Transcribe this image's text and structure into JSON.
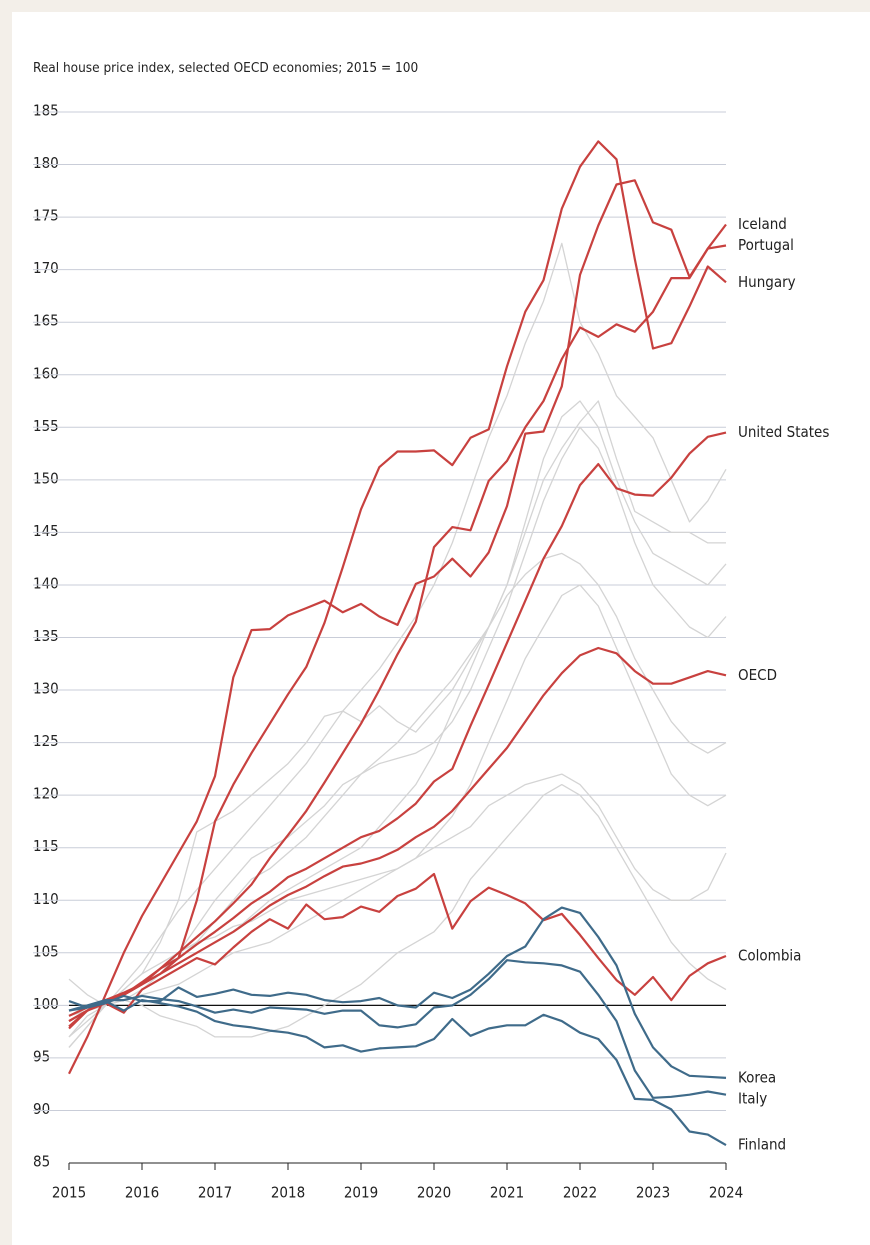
{
  "chart_data": {
    "type": "line",
    "title": "Real house price index, selected OECD economies; 2015 = 100",
    "x": [
      2015,
      2015.25,
      2015.5,
      2015.75,
      2016,
      2016.25,
      2016.5,
      2016.75,
      2017,
      2017.25,
      2017.5,
      2017.75,
      2018,
      2018.25,
      2018.5,
      2018.75,
      2019,
      2019.25,
      2019.5,
      2019.75,
      2020,
      2020.25,
      2020.5,
      2020.75,
      2021,
      2021.25,
      2021.5,
      2021.75,
      2022,
      2022.25,
      2022.5,
      2022.75,
      2023,
      2023.25,
      2023.5,
      2023.75,
      2024
    ],
    "xlim": [
      2015,
      2024
    ],
    "xticks": [
      2015,
      2016,
      2017,
      2018,
      2019,
      2020,
      2021,
      2022,
      2023,
      2024
    ],
    "ylim": [
      85,
      185
    ],
    "yticks": [
      85,
      90,
      95,
      100,
      105,
      110,
      115,
      120,
      125,
      130,
      135,
      140,
      145,
      150,
      155,
      160,
      165,
      170,
      175,
      180,
      185
    ],
    "grid": true,
    "reference_line": 100,
    "series": [
      {
        "color": "#d4d4d4",
        "values": [
          96,
          98,
          100,
          102,
          104,
          106.5,
          109,
          111,
          113,
          115,
          117,
          119,
          121,
          123,
          125.5,
          128,
          130,
          132,
          134.5,
          137,
          140,
          144,
          149,
          154,
          158,
          163,
          167,
          172.5,
          165,
          162,
          158,
          156,
          154,
          150,
          146,
          148,
          151
        ]
      },
      {
        "color": "#d4d4d4",
        "values": [
          97,
          99,
          100,
          101.5,
          103,
          106,
          110,
          116.5,
          117.5,
          118.5,
          120,
          121.5,
          123,
          125,
          127.5,
          128,
          127,
          128.5,
          127,
          126,
          128,
          130,
          133,
          136,
          140,
          146,
          152,
          156,
          157.5,
          155,
          150,
          146,
          143,
          142,
          141,
          140,
          142
        ]
      },
      {
        "color": "#d4d4d4",
        "values": [
          99,
          100,
          100,
          101,
          102,
          103,
          104,
          105,
          106,
          107,
          108.5,
          110,
          111,
          112,
          113,
          114,
          115,
          117,
          119,
          121,
          124,
          128,
          132,
          136,
          139,
          141,
          142.5,
          143,
          142,
          140,
          137,
          133,
          130,
          127,
          125,
          124,
          125
        ]
      },
      {
        "color": "#d4d4d4",
        "values": [
          98,
          99.5,
          100,
          100.5,
          101,
          101.5,
          102,
          103,
          104,
          105,
          105.5,
          106,
          107,
          108,
          109,
          110,
          111,
          112,
          113,
          114,
          116,
          118,
          121,
          125,
          129,
          133,
          136,
          139,
          140,
          138,
          134,
          130,
          126,
          122,
          120,
          119,
          120
        ]
      },
      {
        "color": "#d4d4d4",
        "values": [
          99,
          99.5,
          100,
          100.5,
          100,
          99,
          98.5,
          98,
          97,
          97,
          97,
          97.5,
          98,
          99,
          100,
          101,
          102,
          103.5,
          105,
          106,
          107,
          109,
          112,
          114,
          116,
          118,
          120,
          121,
          120,
          118,
          115,
          112,
          109,
          106,
          104,
          102.5,
          101.5
        ]
      },
      {
        "color": "#d4d4d4",
        "values": [
          102.5,
          101,
          100,
          100.5,
          101.5,
          103,
          105,
          107.5,
          110,
          112,
          114,
          115,
          116,
          117.5,
          119,
          121,
          122,
          123.5,
          125,
          127,
          129,
          131,
          133.5,
          136,
          140,
          145,
          150,
          153,
          155.5,
          157.5,
          152,
          147,
          146,
          145,
          145,
          144,
          144
        ]
      },
      {
        "color": "#d4d4d4",
        "values": [
          97,
          98.5,
          100,
          101,
          102,
          103,
          104.5,
          106,
          108,
          110,
          112,
          113,
          114.5,
          116,
          118,
          120,
          122,
          123,
          123.5,
          124,
          125,
          127,
          130,
          134,
          138,
          143,
          148,
          152,
          155,
          153,
          149,
          144,
          140,
          138,
          136,
          135,
          137
        ]
      },
      {
        "color": "#d4d4d4",
        "values": [
          96,
          98,
          100,
          101.5,
          103,
          104,
          105,
          106,
          106.5,
          107.5,
          108,
          109,
          110,
          110.5,
          111,
          111.5,
          112,
          112.5,
          113,
          114,
          115,
          116,
          117,
          119,
          120,
          121,
          121.5,
          122,
          121,
          119,
          116,
          113,
          111,
          110,
          110,
          111,
          114.5
        ]
      },
      {
        "name": "Iceland",
        "color": "#c8413f",
        "values": [
          93.5,
          97,
          101,
          105,
          108.5,
          111.5,
          114.5,
          117.5,
          121.8,
          131.2,
          135.7,
          135.8,
          137.1,
          137.8,
          138.5,
          137.4,
          138.2,
          137,
          136.2,
          140.1,
          140.8,
          142.5,
          140.8,
          143.1,
          147.5,
          154.4,
          154.6,
          158.9,
          169.5,
          174.2,
          178.1,
          178.5,
          174.5,
          173.8,
          169.3,
          172,
          174.3
        ]
      },
      {
        "name": "Portugal",
        "color": "#c8413f",
        "values": [
          98.5,
          99.5,
          100.5,
          101,
          102,
          103.5,
          105,
          106.5,
          108,
          109.7,
          111.5,
          114,
          116.2,
          118.5,
          121.2,
          124,
          126.8,
          130,
          133.4,
          136.5,
          143.6,
          145.5,
          145.2,
          149.9,
          151.8,
          155,
          157.5,
          161.5,
          164.5,
          163.6,
          164.8,
          164.1,
          166,
          169.2,
          169.2,
          172,
          172.3
        ]
      },
      {
        "name": "Hungary",
        "color": "#c8413f",
        "values": [
          98,
          99.5,
          100.5,
          101,
          102,
          103,
          104.5,
          110,
          117.5,
          121,
          124,
          126.8,
          129.6,
          132.2,
          136.4,
          141.7,
          147.2,
          151.2,
          152.7,
          152.7,
          152.8,
          151.4,
          154,
          154.8,
          160.8,
          166,
          169,
          175.8,
          179.8,
          182.2,
          180.5,
          171,
          162.5,
          163,
          166.5,
          170.3,
          168.8
        ]
      },
      {
        "name": "United States",
        "color": "#c8413f",
        "values": [
          98.5,
          99.5,
          100.3,
          101,
          102.2,
          103.5,
          104.5,
          105.8,
          107,
          108.3,
          109.7,
          110.8,
          112.2,
          113,
          114,
          115,
          116,
          116.6,
          117.8,
          119.2,
          121.3,
          122.5,
          126.6,
          130.5,
          134.5,
          138.5,
          142.5,
          145.6,
          149.5,
          151.5,
          149.2,
          148.6,
          148.5,
          150.2,
          152.5,
          154.1,
          154.5
        ]
      },
      {
        "name": "OECD",
        "color": "#c8413f",
        "values": [
          99,
          99.8,
          100.5,
          101.2,
          102,
          103,
          104,
          105,
          106,
          107,
          108.2,
          109.5,
          110.5,
          111.3,
          112.3,
          113.2,
          113.5,
          114,
          114.8,
          116,
          117,
          118.5,
          120.5,
          122.5,
          124.5,
          127,
          129.5,
          131.6,
          133.3,
          134,
          133.5,
          131.8,
          130.6,
          130.6,
          131.2,
          131.8,
          131.4
        ]
      },
      {
        "name": "Colombia",
        "color": "#c8413f",
        "values": [
          97.8,
          99.5,
          100.2,
          99.3,
          101.5,
          102.5,
          103.5,
          104.5,
          103.9,
          105.5,
          107,
          108.2,
          107.3,
          109.6,
          108.2,
          108.4,
          109.4,
          108.9,
          110.4,
          111.1,
          112.5,
          107.3,
          109.9,
          111.2,
          110.5,
          109.7,
          108.1,
          108.7,
          106.7,
          104.5,
          102.4,
          101,
          102.7,
          100.5,
          102.8,
          104,
          104.7
        ]
      },
      {
        "name": "Korea",
        "color": "#3f6b8a",
        "values": [
          100.4,
          99.8,
          100.2,
          100.9,
          100.4,
          100.4,
          101.7,
          100.8,
          101.1,
          101.5,
          101,
          100.9,
          101.2,
          101,
          100.5,
          100.3,
          100.4,
          100.7,
          100,
          99.8,
          101.2,
          100.7,
          101.5,
          103,
          104.7,
          105.6,
          108.2,
          109.3,
          108.8,
          106.5,
          103.8,
          99.2,
          96,
          94.2,
          93.3,
          93.2,
          93.1
        ]
      },
      {
        "name": "Italy",
        "color": "#3f6b8a",
        "values": [
          99.5,
          100,
          100.5,
          100.5,
          100.9,
          100.6,
          100.4,
          99.9,
          99.3,
          99.6,
          99.3,
          99.8,
          99.7,
          99.6,
          99.2,
          99.5,
          99.5,
          98.1,
          97.9,
          98.2,
          99.8,
          100,
          101,
          102.5,
          104.3,
          104.1,
          104,
          103.8,
          103.2,
          101,
          98.5,
          93.8,
          91.2,
          91.3,
          91.5,
          91.8,
          91.5
        ]
      },
      {
        "name": "Finland",
        "color": "#3f6b8a",
        "values": [
          99.5,
          99.8,
          100.4,
          99.5,
          100.5,
          100.2,
          99.9,
          99.4,
          98.5,
          98.1,
          97.9,
          97.6,
          97.4,
          97,
          96,
          96.2,
          95.6,
          95.9,
          96,
          96.1,
          96.8,
          98.7,
          97.1,
          97.8,
          98.1,
          98.1,
          99.1,
          98.5,
          97.4,
          96.8,
          94.8,
          91.1,
          91,
          90.1,
          88,
          87.7,
          86.7
        ]
      }
    ]
  }
}
